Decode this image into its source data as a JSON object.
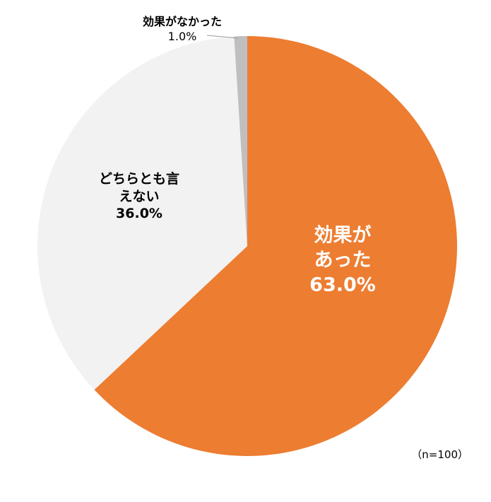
{
  "chart_data": {
    "type": "pie",
    "categories": [
      "効果があった",
      "どちらとも言えない",
      "効果がなかった"
    ],
    "values": [
      63.0,
      36.0,
      1.0
    ],
    "value_labels": [
      "63.0%",
      "36.0%",
      "1.0%"
    ],
    "colors": [
      "#ED7D31",
      "#F2F2F2",
      "#BFBFBF"
    ],
    "note": "（n=100）"
  }
}
